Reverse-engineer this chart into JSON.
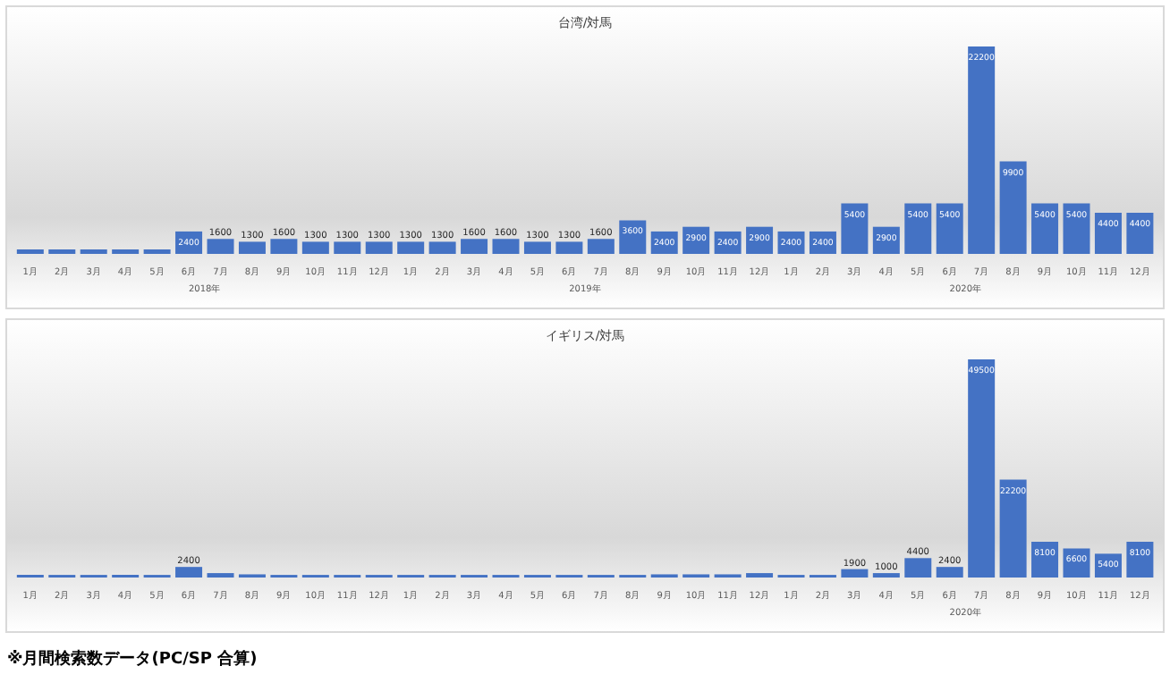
{
  "chart_data": [
    {
      "type": "bar",
      "title": "台湾/対馬",
      "categories": [
        "1月",
        "2月",
        "3月",
        "4月",
        "5月",
        "6月",
        "7月",
        "8月",
        "9月",
        "10月",
        "11月",
        "12月",
        "1月",
        "2月",
        "3月",
        "4月",
        "5月",
        "6月",
        "7月",
        "8月",
        "9月",
        "10月",
        "11月",
        "12月",
        "1月",
        "2月",
        "3月",
        "4月",
        "5月",
        "6月",
        "7月",
        "8月",
        "9月",
        "10月",
        "11月",
        "12月"
      ],
      "values": [
        480,
        480,
        480,
        480,
        480,
        2400,
        1600,
        1300,
        1600,
        1300,
        1300,
        1300,
        1300,
        1300,
        1600,
        1600,
        1300,
        1300,
        1600,
        3600,
        2400,
        2900,
        2400,
        2900,
        2400,
        2400,
        5400,
        2900,
        5400,
        5400,
        22200,
        9900,
        5400,
        5400,
        4400,
        4400
      ],
      "value_labels": [
        null,
        null,
        null,
        null,
        null,
        "2400",
        "1600",
        "1300",
        "1600",
        "1300",
        "1300",
        "1300",
        "1300",
        "1300",
        "1600",
        "1600",
        "1300",
        "1300",
        "1600",
        "3600",
        "2400",
        "2900",
        "2400",
        "2900",
        "2400",
        "2400",
        "5400",
        "2900",
        "5400",
        "5400",
        "22200",
        "9900",
        "5400",
        "5400",
        "4400",
        "4400"
      ],
      "color": "#4472c4",
      "annotations": [
        "2018年",
        "2019年",
        "2020年"
      ]
    },
    {
      "type": "bar",
      "title": "イギリス/対馬",
      "categories": [
        "1月",
        "2月",
        "3月",
        "4月",
        "5月",
        "6月",
        "7月",
        "8月",
        "9月",
        "10月",
        "11月",
        "12月",
        "1月",
        "2月",
        "3月",
        "4月",
        "5月",
        "6月",
        "7月",
        "8月",
        "9月",
        "10月",
        "11月",
        "12月",
        "1月",
        "2月",
        "3月",
        "4月",
        "5月",
        "6月",
        "7月",
        "8月",
        "9月",
        "10月",
        "11月",
        "12月"
      ],
      "values": [
        590,
        590,
        590,
        590,
        590,
        2400,
        1000,
        720,
        590,
        590,
        590,
        590,
        590,
        590,
        590,
        590,
        590,
        590,
        590,
        590,
        720,
        720,
        720,
        1000,
        590,
        590,
        1900,
        1000,
        4400,
        2400,
        49500,
        22200,
        8100,
        6600,
        5400,
        8100
      ],
      "value_labels": [
        null,
        null,
        null,
        null,
        null,
        "2400",
        null,
        null,
        null,
        null,
        null,
        null,
        null,
        null,
        null,
        null,
        null,
        null,
        null,
        null,
        null,
        null,
        null,
        null,
        null,
        null,
        "1900",
        "1000",
        "4400",
        "2400",
        "49500",
        "22200",
        "8100",
        "6600",
        "5400",
        "8100"
      ],
      "color": "#4472c4",
      "annotations": [
        "2020年"
      ]
    },
    {
      "type": "other",
      "annotations": [
        "※月間検索数データ(PC/SP 合算)"
      ]
    }
  ]
}
